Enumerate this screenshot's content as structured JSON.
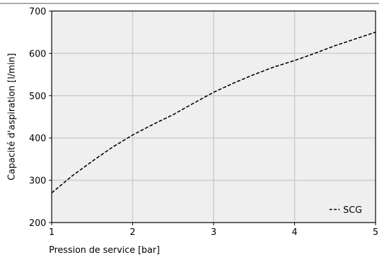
{
  "chart_data": {
    "type": "line",
    "xlabel": "Pression de service [bar]",
    "ylabel": "Capacité d'aspiration [l/min]",
    "xlim": [
      1,
      5
    ],
    "ylim": [
      200,
      700
    ],
    "xticks": [
      1,
      2,
      3,
      4,
      5
    ],
    "yticks": [
      200,
      300,
      400,
      500,
      600,
      700
    ],
    "grid": true,
    "legend_position": "bottom-right",
    "colors": {
      "plot_background": "#efefef",
      "grid": "#cccccc",
      "line": "#000000"
    },
    "series": [
      {
        "name": "SCG",
        "line_style": "dashed",
        "x": [
          1.0,
          1.25,
          1.5,
          1.75,
          2.0,
          2.25,
          2.5,
          2.75,
          3.0,
          3.25,
          3.5,
          3.75,
          4.0,
          4.25,
          4.5,
          4.75,
          5.0
        ],
        "y": [
          270,
          310,
          345,
          378,
          407,
          432,
          455,
          482,
          508,
          530,
          550,
          568,
          583,
          600,
          618,
          634,
          650
        ]
      }
    ]
  }
}
